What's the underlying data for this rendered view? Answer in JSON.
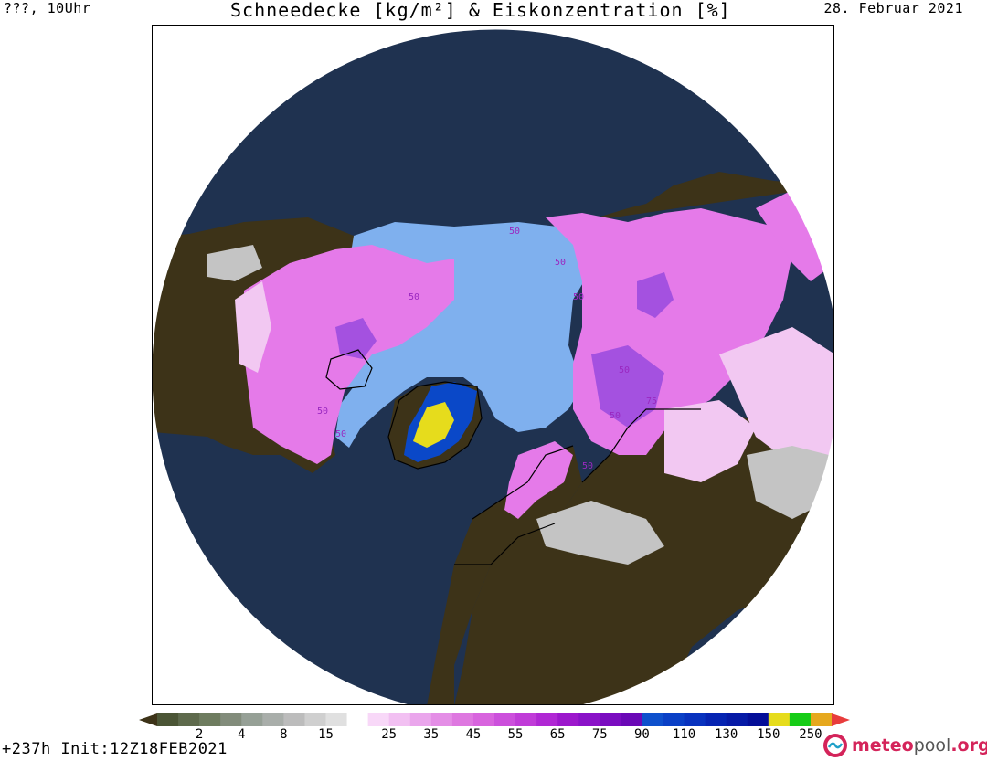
{
  "header": {
    "valid_time": "???, 10Uhr",
    "title": "Schneedecke [kg/m²] & Eiskonzentration [%]",
    "date": "28. Februar 2021"
  },
  "footer": {
    "run_info": "+237h  Init:12Z18FEB2021"
  },
  "brand": {
    "name_part1": "meteo",
    "name_part2": "pool",
    "name_part3": ".org",
    "logo_icon": "meteopool-logo-icon"
  },
  "map": {
    "projection": "polar-stereographic-north",
    "colors": {
      "ocean": "#1f3250",
      "land": "#3d3318",
      "sea_ice": "#7fb0ee",
      "snow_magenta": "#e57ae9",
      "snow_light": "#f2c8f2",
      "snow_violet": "#a451e0",
      "snow_grey": "#c4c4c4",
      "greenland_blue": "#0a48c8",
      "greenland_yellow": "#e6dc1c",
      "coastline": "#000000"
    },
    "contour_labels": [
      "50",
      "50",
      "50",
      "50",
      "50",
      "50",
      "50",
      "75",
      "50",
      "50"
    ]
  },
  "scale": {
    "ticks": [
      "2",
      "4",
      "8",
      "15",
      "25",
      "35",
      "45",
      "55",
      "65",
      "75",
      "90",
      "110",
      "130",
      "150",
      "250"
    ],
    "colors": [
      "#4b5535",
      "#5e6a4c",
      "#6e7c5f",
      "#828c7b",
      "#96a096",
      "#a9aeaa",
      "#bcbcbc",
      "#cfcfcf",
      "#e0e0e0",
      "#ffffff",
      "#f8d8f8",
      "#f2c0f2",
      "#eaa6ec",
      "#e48ee6",
      "#de78e0",
      "#d864de",
      "#cc50dc",
      "#c03cd8",
      "#b028d4",
      "#9c18cc",
      "#8a12c8",
      "#7a0cc0",
      "#6a08b6",
      "#0e50cc",
      "#0a40c6",
      "#0832be",
      "#0624b2",
      "#061aa6",
      "#040e98",
      "#e6dc1c",
      "#16cc16",
      "#e6a81e"
    ],
    "left_arrow": "#3d3318",
    "right_arrow": "#e83c3c"
  }
}
